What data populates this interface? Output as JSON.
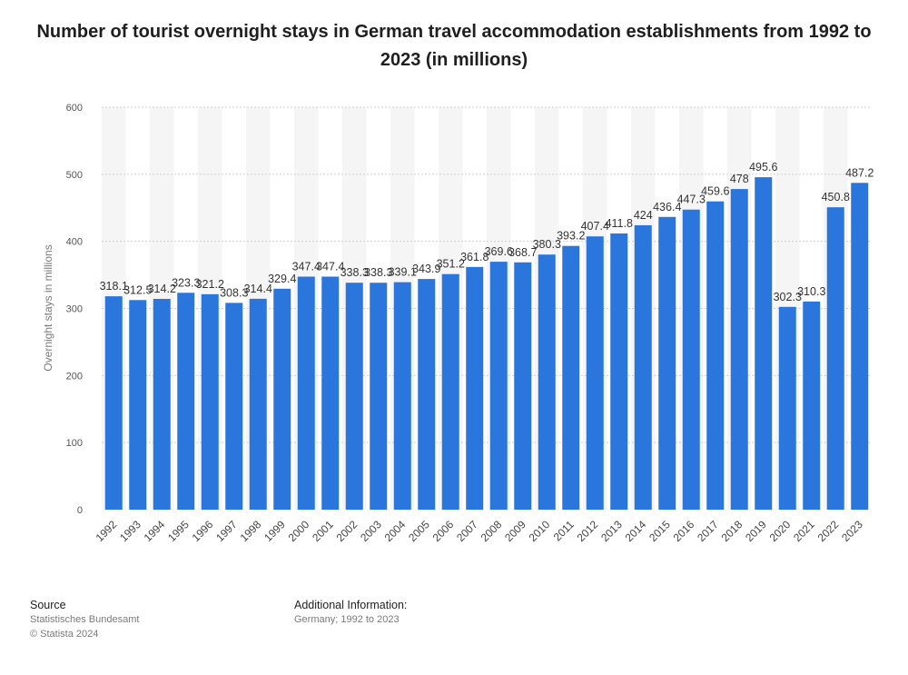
{
  "chart_data": {
    "type": "bar",
    "title": "Number of tourist overnight stays in German travel accommodation establishments from 1992 to 2023 (in millions)",
    "xlabel": "",
    "ylabel": "Overnight stays in millions",
    "ylim": [
      0,
      600
    ],
    "yticks": [
      "0",
      "100",
      "200",
      "300",
      "400",
      "500",
      "600"
    ],
    "grid": true,
    "categories": [
      "1992",
      "1993",
      "1994",
      "1995",
      "1996",
      "1997",
      "1998",
      "1999",
      "2000",
      "2001",
      "2002",
      "2003",
      "2004",
      "2005",
      "2006",
      "2007",
      "2008",
      "2009",
      "2010",
      "2011",
      "2012",
      "2013",
      "2014",
      "2015",
      "2016",
      "2017",
      "2018",
      "2019",
      "2020",
      "2021",
      "2022",
      "2023"
    ],
    "values": [
      318.1,
      312.5,
      314.2,
      323.3,
      321.2,
      308.3,
      314.4,
      329.4,
      347.4,
      347.4,
      338.3,
      338.3,
      339.1,
      343.9,
      351.2,
      361.8,
      369.6,
      368.7,
      380.3,
      393.2,
      407.4,
      411.8,
      424,
      436.4,
      447.3,
      459.6,
      478,
      495.6,
      302.3,
      310.3,
      450.8,
      487.2
    ],
    "value_labels": [
      "318.1",
      "312.5",
      "314.2",
      "323.3",
      "321.2",
      "308.3",
      "314.4",
      "329.4",
      "347.4",
      "347.4",
      "338.3",
      "338.3",
      "339.1",
      "343.9",
      "351.2",
      "361.8",
      "369.6",
      "368.7",
      "380.3",
      "393.2",
      "407.4",
      "411.8",
      "424",
      "436.4",
      "447.3",
      "459.6",
      "478",
      "495.6",
      "302.3",
      "310.3",
      "450.8",
      "487.2"
    ],
    "bar_color": "#2a76dd"
  },
  "footer": {
    "source_heading": "Source",
    "source_line1": "Statistisches Bundesamt",
    "source_line2": "© Statista 2024",
    "info_heading": "Additional Information:",
    "info_line1": "Germany; 1992 to 2023"
  }
}
